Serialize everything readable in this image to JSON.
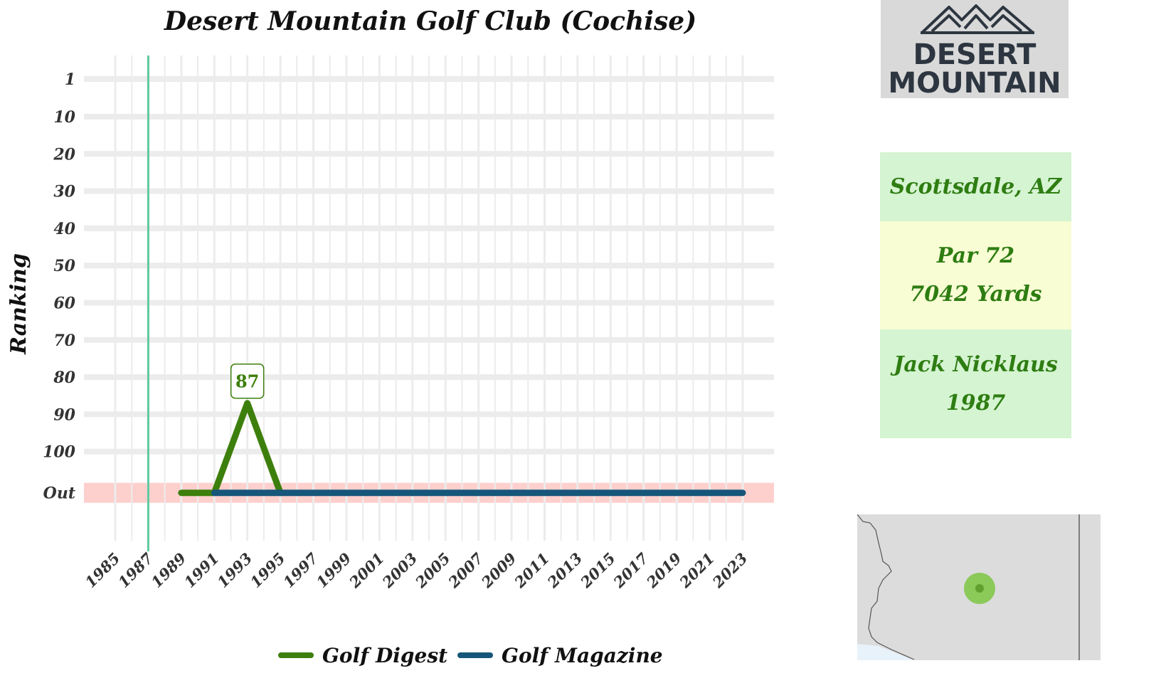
{
  "chart_data": {
    "type": "line",
    "title": "Desert Mountain Golf Club (Cochise)",
    "ylabel": "Ranking",
    "xlabel": "",
    "x_ticks": [
      "1985",
      "1987",
      "1989",
      "1991",
      "1993",
      "1995",
      "1997",
      "1999",
      "2001",
      "2003",
      "2005",
      "2007",
      "2009",
      "2011",
      "2013",
      "2015",
      "2017",
      "2019",
      "2021",
      "2023"
    ],
    "y_ticks": [
      "1",
      "10",
      "20",
      "30",
      "40",
      "50",
      "60",
      "70",
      "80",
      "90",
      "100",
      "Out"
    ],
    "y_tick_values": [
      1,
      10,
      20,
      30,
      40,
      50,
      60,
      70,
      80,
      90,
      100,
      110
    ],
    "xlim": [
      1984,
      2024
    ],
    "ylim": [
      1,
      110
    ],
    "out_value": 110,
    "y_inverted": true,
    "grid": true,
    "legend_position": "bottom",
    "reference_line": {
      "x": 1987,
      "color": "#5fc9a0"
    },
    "out_band_color": "#fdd0cd",
    "series": [
      {
        "name": "Golf Digest",
        "color": "#3d7f0c",
        "points": [
          {
            "x": 1989,
            "y": "Out"
          },
          {
            "x": 1991,
            "y": "Out"
          },
          {
            "x": 1993,
            "y": 87
          },
          {
            "x": 1995,
            "y": "Out"
          }
        ]
      },
      {
        "name": "Golf Magazine",
        "color": "#16567a",
        "points": [
          {
            "x": 1991,
            "y": "Out"
          },
          {
            "x": 2023,
            "y": "Out"
          }
        ]
      }
    ],
    "annotations": [
      {
        "x": 1993,
        "y": 87,
        "label": "87"
      }
    ]
  },
  "logo": {
    "line1": "DESERT",
    "line2": "MOUNTAIN"
  },
  "info": {
    "location": "Scottsdale, AZ",
    "par": "Par 72",
    "yards": "7042 Yards",
    "designer": "Jack Nicklaus",
    "year": "1987"
  },
  "colors": {
    "text_green": "#2e7d12",
    "grid": "#ececec",
    "marker": "#7cc542"
  }
}
